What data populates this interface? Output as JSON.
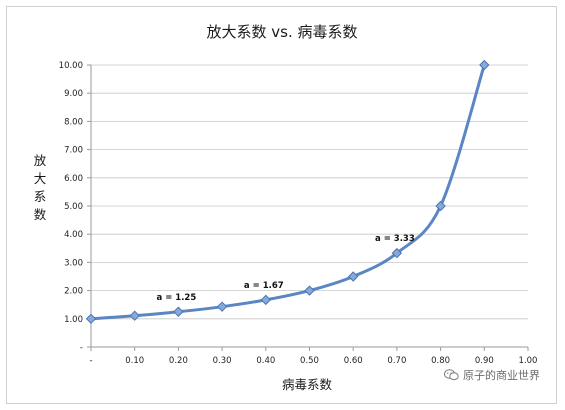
{
  "chart_data": {
    "type": "line",
    "title": "放大系数 vs. 病毒系数",
    "xlabel": "病毒系数",
    "ylabel": "放大系数",
    "x_tick_labels": [
      "-",
      "0.10",
      "0.20",
      "0.30",
      "0.40",
      "0.50",
      "0.60",
      "0.70",
      "0.80",
      "0.90",
      "1.00"
    ],
    "y_tick_labels": [
      "-",
      "1.00",
      "2.00",
      "3.00",
      "4.00",
      "5.00",
      "6.00",
      "7.00",
      "8.00",
      "9.00",
      "10.00"
    ],
    "xlim": [
      0,
      1
    ],
    "ylim": [
      0,
      10
    ],
    "grid": true,
    "series": [
      {
        "x": [
          0.0,
          0.1,
          0.2,
          0.3,
          0.4,
          0.5,
          0.6,
          0.7,
          0.8,
          0.9
        ],
        "values": [
          1.0,
          1.11,
          1.25,
          1.43,
          1.67,
          2.0,
          2.5,
          3.33,
          5.0,
          10.0
        ]
      }
    ],
    "annotations": [
      {
        "text": "a = 1.25",
        "x": 0.2,
        "y": 1.25
      },
      {
        "text": "a = 1.67",
        "x": 0.4,
        "y": 1.67
      },
      {
        "text": "a = 3.33",
        "x": 0.7,
        "y": 3.33
      }
    ],
    "colors": {
      "line": "#5b86c4",
      "marker_fill": "#86a9d9",
      "marker_stroke": "#4a76b3",
      "grid": "#c8c8c8"
    }
  },
  "watermark": {
    "text": "原子的商业世界",
    "icon": "wechat-icon"
  }
}
